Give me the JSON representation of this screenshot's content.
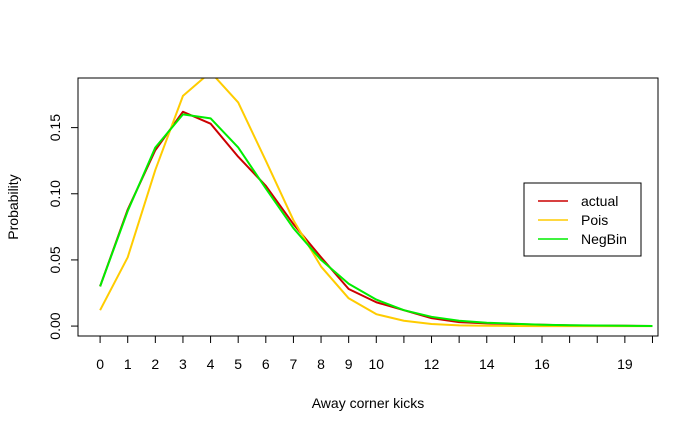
{
  "chart_data": {
    "type": "line",
    "title": "",
    "xlabel": "Away corner kicks",
    "ylabel": "Probability",
    "x": [
      0,
      1,
      2,
      3,
      4,
      5,
      6,
      7,
      8,
      9,
      10,
      11,
      12,
      13,
      14,
      15,
      16,
      17,
      18,
      19,
      20
    ],
    "xlim": [
      -0.8,
      20.2
    ],
    "ylim": [
      0,
      0.18
    ],
    "x_ticks": [
      0,
      1,
      2,
      3,
      4,
      5,
      6,
      7,
      8,
      9,
      10,
      11,
      12,
      13,
      14,
      15,
      16,
      17,
      18,
      19,
      20
    ],
    "x_tick_labels": [
      "0",
      "1",
      "2",
      "3",
      "4",
      "5",
      "6",
      "7",
      "8",
      "9",
      "10",
      "",
      "12",
      "",
      "14",
      "",
      "16",
      "",
      "",
      "19",
      ""
    ],
    "y_ticks": [
      0,
      0.05,
      0.1,
      0.15
    ],
    "y_tick_labels": [
      "0.00",
      "0.05",
      "0.10",
      "0.15"
    ],
    "grid": false,
    "legend_position": "right",
    "series": [
      {
        "name": "actual",
        "color": "#cc0000",
        "values": [
          0.03,
          0.088,
          0.133,
          0.162,
          0.153,
          0.128,
          0.106,
          0.077,
          0.052,
          0.028,
          0.018,
          0.012,
          0.006,
          0.003,
          0.002,
          0.0015,
          0.001,
          0.0005,
          0.0003,
          0.0002,
          0.0001
        ]
      },
      {
        "name": "Pois",
        "color": "#ffcc00",
        "values": [
          0.012,
          0.052,
          0.118,
          0.174,
          0.192,
          0.169,
          0.125,
          0.08,
          0.045,
          0.021,
          0.009,
          0.004,
          0.0016,
          0.0005,
          0.0002,
          0.0001,
          0.0,
          0.0,
          0.0,
          0.0,
          0.0
        ]
      },
      {
        "name": "NegBin",
        "color": "#00ee00",
        "values": [
          0.03,
          0.087,
          0.135,
          0.16,
          0.157,
          0.135,
          0.104,
          0.074,
          0.05,
          0.032,
          0.02,
          0.012,
          0.007,
          0.004,
          0.0025,
          0.0018,
          0.001,
          0.0006,
          0.0004,
          0.0002,
          0.0001
        ]
      }
    ]
  }
}
